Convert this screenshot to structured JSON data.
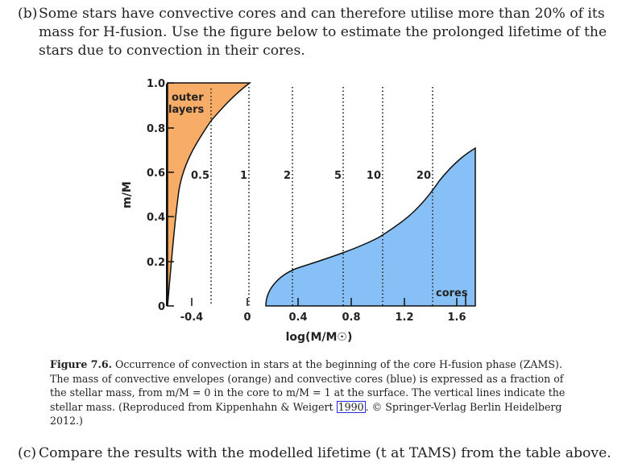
{
  "part_b": {
    "label": "(b)",
    "text": "Some stars have convective cores and can therefore utilise more than 20% of its mass for H-fusion. Use the figure below to estimate the prolonged lifetime of the stars due to convection in their cores."
  },
  "part_c": {
    "label": "(c)",
    "text": "Compare the results with the modelled lifetime (t at TAMS) from the table above."
  },
  "figure": {
    "ylabel": "m/M",
    "xlabel": "log(M/M☉)",
    "outer_label_1": "outer",
    "outer_label_2": "layers",
    "cores_label": "cores",
    "y_ticks": [
      "1.0",
      "0.8",
      "0.6",
      "0.4",
      "0.2",
      "0"
    ],
    "x_ticks": [
      "-0.4",
      "0",
      "0.4",
      "0.8",
      "1.2",
      "1.6"
    ],
    "mass_labels": [
      "0.5",
      "1",
      "2",
      "5",
      "10",
      "20"
    ],
    "colors": {
      "envelope": "#f7ad68",
      "core": "#86c0f7",
      "outline": "#111111"
    }
  },
  "caption": {
    "label": "Figure 7.6.",
    "text_1": "Occurrence of convection in stars at the beginning of the core H-fusion phase (ZAMS). The mass of convective envelopes (orange) and convective cores (blue) is expressed as a fraction of the stellar mass, from m/M = 0 in the core to m/M = 1 at the surface. The vertical lines indicate the stellar mass. (Reproduced from Kippenhahn & Weigert ",
    "cite": "1990",
    "text_2": ". © Springer-Verlag Berlin Heidelberg 2012.)"
  }
}
